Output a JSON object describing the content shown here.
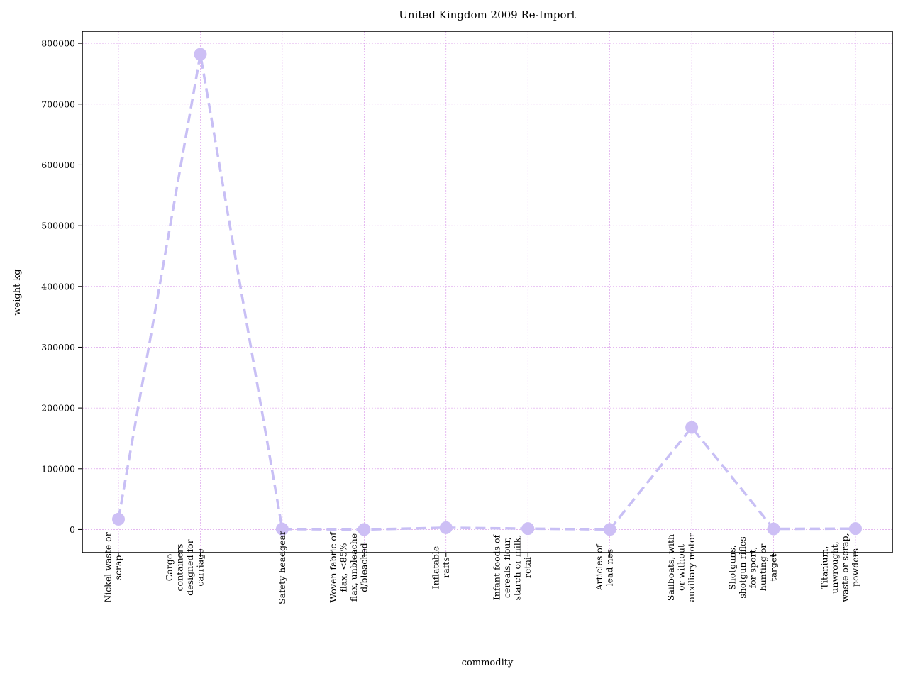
{
  "chart_data": {
    "type": "line",
    "title": "United Kingdom 2009 Re-Import",
    "xlabel": "commodity",
    "ylabel": "weight kg",
    "categories": [
      "Nickel waste or scrap",
      "Cargo containers designed for carriage",
      "Safety headgear",
      "Woven fabric of flax, <85% flax, unbleached/bleached",
      "Inflatable rafts",
      "Infant foods of cereals, flour, starch or milk, retai",
      "Articles of lead nes",
      "Sailboats, with or without auxiliary motor",
      "Shotguns, shotgun-rifles for sport, hunting or target",
      "Titanium, unwrought, waste or scrap, powders"
    ],
    "category_label_lines": [
      [
        "Nickel waste or",
        "scrap"
      ],
      [
        "Cargo",
        "containers",
        "designed for",
        "carriage"
      ],
      [
        "Safety headgear"
      ],
      [
        "Woven fabric of",
        "flax, <85%",
        "flax, unbleache",
        "d/bleached"
      ],
      [
        "Inflatable",
        "rafts"
      ],
      [
        "Infant foods of",
        "cereals, flour,",
        "starch or milk,",
        "retai"
      ],
      [
        "Articles of",
        "lead nes"
      ],
      [
        "Sailboats, with",
        "or without",
        "auxiliary motor"
      ],
      [
        "Shotguns,",
        "shotgun-rifles",
        "for sport,",
        "hunting or",
        "target"
      ],
      [
        "Titanium,",
        "unwrought,",
        "waste or scrap,",
        "powders"
      ]
    ],
    "series": [
      {
        "values": [
          17000,
          782000,
          800,
          0,
          3000,
          1500,
          100,
          168000,
          1000,
          1500
        ]
      }
    ],
    "ylim": [
      -38000,
      820000
    ],
    "yticks": [
      0,
      100000,
      200000,
      300000,
      400000,
      500000,
      600000,
      700000,
      800000
    ],
    "ytick_labels": [
      "0",
      "100000",
      "200000",
      "300000",
      "400000",
      "500000",
      "600000",
      "700000",
      "800000"
    ],
    "grid": true,
    "line_color": "#c8bff5",
    "marker_color": "#cdbff5",
    "grid_color": "#d58fe8"
  }
}
